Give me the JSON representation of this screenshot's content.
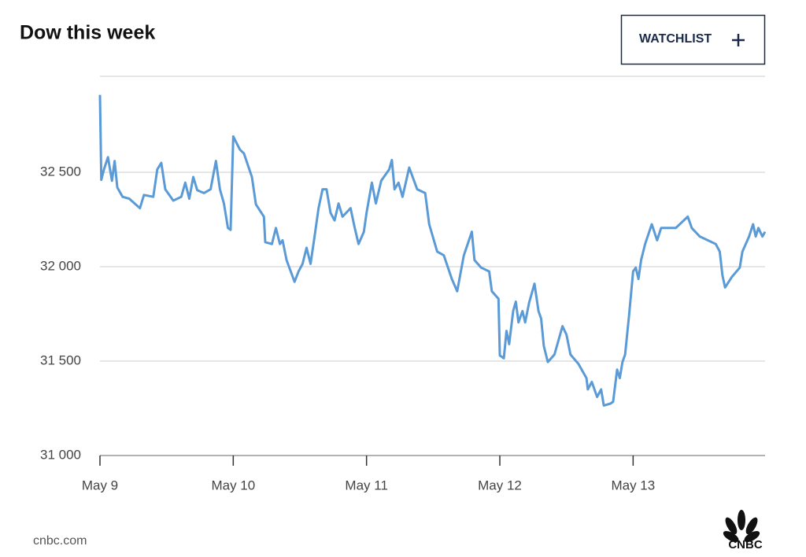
{
  "chart_data": {
    "type": "line",
    "title": "Dow this week",
    "xlim": [
      0,
      4.99
    ],
    "xticks": [
      {
        "value": 0,
        "label": "May 9"
      },
      {
        "value": 1,
        "label": "May 10"
      },
      {
        "value": 2,
        "label": "May 11"
      },
      {
        "value": 3,
        "label": "May 12"
      },
      {
        "value": 4,
        "label": "May 13"
      }
    ],
    "ylim": [
      31000,
      33000
    ],
    "yticks": [
      {
        "value": 31000,
        "label": "31 000"
      },
      {
        "value": 31500,
        "label": "31 500"
      },
      {
        "value": 32000,
        "label": "32 000"
      },
      {
        "value": 32500,
        "label": "32 500"
      }
    ],
    "grid": true,
    "series": [
      {
        "name": "Dow",
        "color": "#5a9ad6",
        "x": [
          0,
          0.01,
          0.03,
          0.06,
          0.09,
          0.11,
          0.13,
          0.17,
          0.22,
          0.3,
          0.33,
          0.4,
          0.43,
          0.46,
          0.49,
          0.55,
          0.61,
          0.64,
          0.67,
          0.7,
          0.73,
          0.78,
          0.83,
          0.87,
          0.9,
          0.93,
          0.96,
          0.98,
          1.0,
          1.05,
          1.08,
          1.14,
          1.17,
          1.23,
          1.24,
          1.29,
          1.32,
          1.35,
          1.37,
          1.4,
          1.46,
          1.49,
          1.52,
          1.55,
          1.58,
          1.61,
          1.64,
          1.67,
          1.7,
          1.73,
          1.76,
          1.79,
          1.82,
          1.88,
          1.91,
          1.94,
          1.98,
          2.0,
          2.04,
          2.07,
          2.11,
          2.17,
          2.19,
          2.21,
          2.24,
          2.27,
          2.32,
          2.38,
          2.44,
          2.47,
          2.53,
          2.58,
          2.64,
          2.68,
          2.73,
          2.79,
          2.81,
          2.86,
          2.92,
          2.94,
          2.99,
          3.0,
          3.03,
          3.05,
          3.07,
          3.1,
          3.12,
          3.14,
          3.17,
          3.19,
          3.22,
          3.26,
          3.29,
          3.31,
          3.33,
          3.36,
          3.41,
          3.44,
          3.47,
          3.5,
          3.53,
          3.59,
          3.65,
          3.66,
          3.69,
          3.73,
          3.76,
          3.78,
          3.83,
          3.85,
          3.88,
          3.9,
          3.92,
          3.94,
          3.97,
          4.0,
          4.02,
          4.04,
          4.06,
          4.09,
          4.14,
          4.18,
          4.21,
          4.27,
          4.32,
          4.41,
          4.44,
          4.5,
          4.56,
          4.62,
          4.65,
          4.67,
          4.69,
          4.74,
          4.8,
          4.82,
          4.87,
          4.9,
          4.92,
          4.94,
          4.97,
          4.99
        ],
        "values": [
          32910,
          32460,
          32515,
          32580,
          32455,
          32560,
          32420,
          32370,
          32360,
          32310,
          32380,
          32370,
          32515,
          32550,
          32410,
          32350,
          32370,
          32445,
          32360,
          32475,
          32405,
          32390,
          32410,
          32560,
          32410,
          32335,
          32205,
          32195,
          32690,
          32620,
          32600,
          32475,
          32330,
          32265,
          32130,
          32120,
          32205,
          32120,
          32140,
          32035,
          31920,
          31975,
          32015,
          32100,
          32015,
          32160,
          32310,
          32410,
          32410,
          32285,
          32245,
          32335,
          32265,
          32310,
          32210,
          32120,
          32185,
          32285,
          32445,
          32335,
          32455,
          32515,
          32565,
          32410,
          32445,
          32370,
          32525,
          32410,
          32390,
          32225,
          32080,
          32060,
          31935,
          31870,
          32060,
          32185,
          32035,
          31995,
          31975,
          31870,
          31830,
          31530,
          31515,
          31660,
          31590,
          31765,
          31815,
          31705,
          31765,
          31705,
          31810,
          31910,
          31765,
          31725,
          31580,
          31495,
          31535,
          31610,
          31685,
          31640,
          31535,
          31485,
          31410,
          31350,
          31390,
          31310,
          31350,
          31265,
          31275,
          31285,
          31455,
          31410,
          31495,
          31535,
          31745,
          31975,
          31995,
          31935,
          32035,
          32120,
          32225,
          32140,
          32205,
          32205,
          32205,
          32265,
          32205,
          32160,
          32140,
          32120,
          32080,
          31955,
          31890,
          31945,
          31995,
          32080,
          32160,
          32225,
          32160,
          32205,
          32160,
          32185
        ]
      }
    ]
  },
  "button": "WATCHLIST",
  "source": "cnbc.com",
  "logo": "CNBC"
}
